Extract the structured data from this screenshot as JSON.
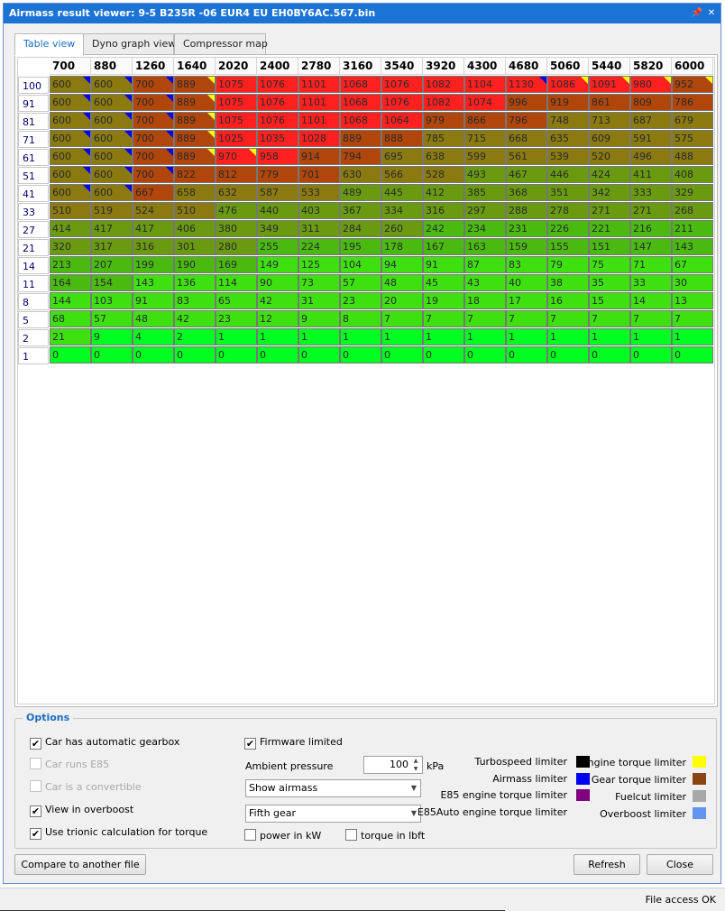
{
  "window": {
    "title": "Airmass result viewer: 9-5 B235R -06 EUR4 EU EH0BY6AC.567.bin",
    "pin_icon": "pin-icon",
    "close_icon": "close-icon"
  },
  "tabs": [
    {
      "label": "Table view",
      "active": true
    },
    {
      "label": "Dyno graph view",
      "active": false
    },
    {
      "label": "Compressor map",
      "active": false
    }
  ],
  "table": {
    "columns": [
      "700",
      "880",
      "1260",
      "1640",
      "2020",
      "2400",
      "2780",
      "3160",
      "3540",
      "3920",
      "4300",
      "4680",
      "5060",
      "5440",
      "5820",
      "6000"
    ],
    "colors": {
      "red": "#ff2020",
      "darkorange": "#b0460a",
      "olive": "#8a7a10",
      "olivegreen": "#6a9a10",
      "green": "#4aba10",
      "lightgreen": "#3fe010",
      "brightgreen": "#00ff20"
    },
    "rows": [
      {
        "label": "100",
        "values": [
          "600",
          "600",
          "700",
          "889",
          "1075",
          "1076",
          "1101",
          "1068",
          "1076",
          "1082",
          "1104",
          "1130",
          "1086",
          "1091",
          "980",
          "952"
        ],
        "colors": [
          "olive",
          "olive",
          "darkorange",
          "darkorange",
          "red",
          "red",
          "red",
          "red",
          "red",
          "red",
          "red",
          "red",
          "red",
          "red",
          "red",
          "darkorange"
        ],
        "flags": [
          "blue",
          "blue",
          "blue",
          "yellow",
          "",
          "",
          "",
          "",
          "",
          "",
          "",
          "blue",
          "yellow",
          "yellow",
          "yellow",
          "yellow"
        ]
      },
      {
        "label": "91",
        "values": [
          "600",
          "600",
          "700",
          "889",
          "1075",
          "1076",
          "1101",
          "1068",
          "1076",
          "1082",
          "1074",
          "996",
          "919",
          "861",
          "809",
          "786"
        ],
        "colors": [
          "olive",
          "olive",
          "darkorange",
          "darkorange",
          "red",
          "red",
          "red",
          "red",
          "red",
          "red",
          "red",
          "darkorange",
          "darkorange",
          "darkorange",
          "darkorange",
          "darkorange"
        ],
        "flags": [
          "blue",
          "blue",
          "blue",
          "yellow",
          "",
          "",
          "",
          "",
          "",
          "",
          "",
          "",
          "",
          "",
          "",
          ""
        ]
      },
      {
        "label": "81",
        "values": [
          "600",
          "600",
          "700",
          "889",
          "1075",
          "1076",
          "1101",
          "1068",
          "1064",
          "979",
          "866",
          "796",
          "748",
          "713",
          "687",
          "679"
        ],
        "colors": [
          "olive",
          "olive",
          "darkorange",
          "darkorange",
          "red",
          "red",
          "red",
          "red",
          "red",
          "darkorange",
          "darkorange",
          "darkorange",
          "olive",
          "olive",
          "olive",
          "olive"
        ],
        "flags": [
          "blue",
          "blue",
          "blue",
          "yellow",
          "",
          "",
          "",
          "",
          "",
          "",
          "",
          "",
          "",
          "",
          "",
          ""
        ]
      },
      {
        "label": "71",
        "values": [
          "600",
          "600",
          "700",
          "889",
          "1025",
          "1035",
          "1028",
          "889",
          "888",
          "785",
          "715",
          "668",
          "635",
          "609",
          "591",
          "575"
        ],
        "colors": [
          "olive",
          "olive",
          "darkorange",
          "darkorange",
          "red",
          "red",
          "red",
          "darkorange",
          "darkorange",
          "olive",
          "olive",
          "olive",
          "olive",
          "olive",
          "olive",
          "olive"
        ],
        "flags": [
          "blue",
          "blue",
          "blue",
          "yellow",
          "",
          "",
          "",
          "",
          "",
          "",
          "",
          "",
          "",
          "",
          "",
          ""
        ]
      },
      {
        "label": "61",
        "values": [
          "600",
          "600",
          "700",
          "889",
          "970",
          "958",
          "914",
          "794",
          "695",
          "638",
          "599",
          "561",
          "539",
          "520",
          "496",
          "488"
        ],
        "colors": [
          "olive",
          "olive",
          "darkorange",
          "darkorange",
          "red",
          "red",
          "darkorange",
          "darkorange",
          "olive",
          "olive",
          "olive",
          "olive",
          "olive",
          "olive",
          "olive",
          "olive"
        ],
        "flags": [
          "blue",
          "blue",
          "blue",
          "yellow",
          "yellow",
          "",
          "",
          "",
          "",
          "",
          "",
          "",
          "",
          "",
          "",
          ""
        ]
      },
      {
        "label": "51",
        "values": [
          "600",
          "600",
          "700",
          "822",
          "812",
          "779",
          "701",
          "630",
          "566",
          "528",
          "493",
          "467",
          "446",
          "424",
          "411",
          "408"
        ],
        "colors": [
          "olive",
          "olive",
          "darkorange",
          "darkorange",
          "darkorange",
          "darkorange",
          "darkorange",
          "olive",
          "olive",
          "olive",
          "olivegreen",
          "olivegreen",
          "olivegreen",
          "olivegreen",
          "olivegreen",
          "olivegreen"
        ],
        "flags": [
          "blue",
          "blue",
          "blue",
          "",
          "",
          "",
          "",
          "",
          "",
          "",
          "",
          "",
          "",
          "",
          "",
          ""
        ]
      },
      {
        "label": "41",
        "values": [
          "600",
          "600",
          "667",
          "658",
          "632",
          "587",
          "533",
          "489",
          "445",
          "412",
          "385",
          "368",
          "351",
          "342",
          "333",
          "329"
        ],
        "colors": [
          "olive",
          "olive",
          "darkorange",
          "olive",
          "olive",
          "olive",
          "olive",
          "olivegreen",
          "olivegreen",
          "olivegreen",
          "olivegreen",
          "olivegreen",
          "olivegreen",
          "olivegreen",
          "olivegreen",
          "olivegreen"
        ],
        "flags": [
          "blue",
          "blue",
          "",
          "",
          "",
          "",
          "",
          "",
          "",
          "",
          "",
          "",
          "",
          "",
          "",
          ""
        ]
      },
      {
        "label": "33",
        "values": [
          "510",
          "519",
          "524",
          "510",
          "476",
          "440",
          "403",
          "367",
          "334",
          "316",
          "297",
          "288",
          "278",
          "271",
          "271",
          "268"
        ],
        "colors": [
          "olive",
          "olive",
          "olive",
          "olive",
          "olivegreen",
          "olivegreen",
          "olivegreen",
          "olivegreen",
          "olivegreen",
          "olivegreen",
          "olivegreen",
          "olivegreen",
          "olivegreen",
          "olivegreen",
          "olivegreen",
          "olivegreen"
        ],
        "flags": [
          "",
          "",
          "",
          "",
          "",
          "",
          "",
          "",
          "",
          "",
          "",
          "",
          "",
          "",
          "",
          ""
        ]
      },
      {
        "label": "27",
        "values": [
          "414",
          "417",
          "417",
          "406",
          "380",
          "349",
          "311",
          "284",
          "260",
          "242",
          "234",
          "231",
          "226",
          "221",
          "216",
          "211"
        ],
        "colors": [
          "olivegreen",
          "olivegreen",
          "olivegreen",
          "olivegreen",
          "olivegreen",
          "olivegreen",
          "olivegreen",
          "olivegreen",
          "olivegreen",
          "green",
          "green",
          "green",
          "green",
          "green",
          "green",
          "green"
        ],
        "flags": [
          "",
          "",
          "",
          "",
          "",
          "",
          "",
          "",
          "",
          "",
          "",
          "",
          "",
          "",
          "",
          ""
        ]
      },
      {
        "label": "21",
        "values": [
          "320",
          "317",
          "316",
          "301",
          "280",
          "255",
          "224",
          "195",
          "178",
          "167",
          "163",
          "159",
          "155",
          "151",
          "147",
          "143"
        ],
        "colors": [
          "olivegreen",
          "olivegreen",
          "olivegreen",
          "olivegreen",
          "olivegreen",
          "green",
          "green",
          "green",
          "green",
          "green",
          "green",
          "green",
          "green",
          "green",
          "green",
          "green"
        ],
        "flags": [
          "",
          "",
          "",
          "",
          "",
          "",
          "",
          "",
          "",
          "",
          "",
          "",
          "",
          "",
          "",
          ""
        ]
      },
      {
        "label": "14",
        "values": [
          "213",
          "207",
          "199",
          "190",
          "169",
          "149",
          "125",
          "104",
          "94",
          "91",
          "87",
          "83",
          "79",
          "75",
          "71",
          "67"
        ],
        "colors": [
          "green",
          "green",
          "green",
          "green",
          "green",
          "lightgreen",
          "lightgreen",
          "lightgreen",
          "lightgreen",
          "lightgreen",
          "lightgreen",
          "lightgreen",
          "lightgreen",
          "lightgreen",
          "lightgreen",
          "lightgreen"
        ],
        "flags": [
          "",
          "",
          "",
          "",
          "",
          "",
          "",
          "",
          "",
          "",
          "",
          "",
          "",
          "",
          "",
          ""
        ]
      },
      {
        "label": "11",
        "values": [
          "164",
          "154",
          "143",
          "136",
          "114",
          "90",
          "73",
          "57",
          "48",
          "45",
          "43",
          "40",
          "38",
          "35",
          "33",
          "30"
        ],
        "colors": [
          "green",
          "green",
          "lightgreen",
          "lightgreen",
          "lightgreen",
          "lightgreen",
          "lightgreen",
          "lightgreen",
          "lightgreen",
          "lightgreen",
          "lightgreen",
          "lightgreen",
          "lightgreen",
          "lightgreen",
          "lightgreen",
          "lightgreen"
        ],
        "flags": [
          "",
          "",
          "",
          "",
          "",
          "",
          "",
          "",
          "",
          "",
          "",
          "",
          "",
          "",
          "",
          ""
        ]
      },
      {
        "label": "8",
        "values": [
          "144",
          "103",
          "91",
          "83",
          "65",
          "42",
          "31",
          "23",
          "20",
          "19",
          "18",
          "17",
          "16",
          "15",
          "14",
          "13"
        ],
        "colors": [
          "lightgreen",
          "lightgreen",
          "lightgreen",
          "lightgreen",
          "lightgreen",
          "lightgreen",
          "lightgreen",
          "lightgreen",
          "lightgreen",
          "lightgreen",
          "lightgreen",
          "lightgreen",
          "lightgreen",
          "lightgreen",
          "lightgreen",
          "lightgreen"
        ],
        "flags": [
          "",
          "",
          "",
          "",
          "",
          "",
          "",
          "",
          "",
          "",
          "",
          "",
          "",
          "",
          "",
          ""
        ]
      },
      {
        "label": "5",
        "values": [
          "68",
          "57",
          "48",
          "42",
          "23",
          "12",
          "9",
          "8",
          "7",
          "7",
          "7",
          "7",
          "7",
          "7",
          "7",
          "7"
        ],
        "colors": [
          "lightgreen",
          "lightgreen",
          "lightgreen",
          "lightgreen",
          "lightgreen",
          "lightgreen",
          "lightgreen",
          "lightgreen",
          "lightgreen",
          "lightgreen",
          "lightgreen",
          "lightgreen",
          "lightgreen",
          "lightgreen",
          "lightgreen",
          "lightgreen"
        ],
        "flags": [
          "",
          "",
          "",
          "",
          "",
          "",
          "",
          "",
          "",
          "",
          "",
          "",
          "",
          "",
          "",
          ""
        ]
      },
      {
        "label": "2",
        "values": [
          "21",
          "9",
          "4",
          "2",
          "1",
          "1",
          "1",
          "1",
          "1",
          "1",
          "1",
          "1",
          "1",
          "1",
          "1",
          "1"
        ],
        "colors": [
          "lightgreen",
          "brightgreen",
          "brightgreen",
          "brightgreen",
          "brightgreen",
          "brightgreen",
          "brightgreen",
          "brightgreen",
          "brightgreen",
          "brightgreen",
          "brightgreen",
          "brightgreen",
          "brightgreen",
          "brightgreen",
          "brightgreen",
          "brightgreen"
        ],
        "flags": [
          "",
          "",
          "",
          "",
          "",
          "",
          "",
          "",
          "",
          "",
          "",
          "",
          "",
          "",
          "",
          ""
        ]
      },
      {
        "label": "1",
        "values": [
          "0",
          "0",
          "0",
          "0",
          "0",
          "0",
          "0",
          "0",
          "0",
          "0",
          "0",
          "0",
          "0",
          "0",
          "0",
          "0"
        ],
        "colors": [
          "brightgreen",
          "brightgreen",
          "brightgreen",
          "brightgreen",
          "brightgreen",
          "brightgreen",
          "brightgreen",
          "brightgreen",
          "brightgreen",
          "brightgreen",
          "brightgreen",
          "brightgreen",
          "brightgreen",
          "brightgreen",
          "brightgreen",
          "brightgreen"
        ],
        "flags": [
          "",
          "",
          "",
          "",
          "",
          "",
          "",
          "",
          "",
          "",
          "",
          "",
          "",
          "",
          "",
          ""
        ]
      }
    ]
  },
  "options": {
    "title": "Options",
    "automatic_gearbox": {
      "label": "Car has automatic gearbox",
      "checked": true,
      "enabled": true
    },
    "runs_e85": {
      "label": "Car runs E85",
      "checked": false,
      "enabled": false
    },
    "convertible": {
      "label": "Car is a convertible",
      "checked": false,
      "enabled": false
    },
    "overboost": {
      "label": "View in overboost",
      "checked": true,
      "enabled": true
    },
    "trionic_calc": {
      "label": "Use trionic calculation for torque",
      "checked": true,
      "enabled": true
    },
    "firmware_limited": {
      "label": "Firmware limited",
      "checked": true,
      "enabled": true
    },
    "ambient_pressure_label": "Ambient pressure",
    "ambient_pressure_value": "100",
    "ambient_pressure_unit": "kPa",
    "show_select": "Show airmass",
    "gear_select": "Fifth gear",
    "power_kw": {
      "label": "power in kW",
      "checked": false
    },
    "torque_lbft": {
      "label": "torque in lbft",
      "checked": false
    }
  },
  "legend": [
    {
      "label": "Turbospeed limiter",
      "color": "#000000"
    },
    {
      "label": "Airmass limiter",
      "color": "#0000ee"
    },
    {
      "label": "E85 engine torque limiter",
      "color": "#800080"
    },
    {
      "label": "E85Auto engine torque limiter",
      "color": ""
    },
    {
      "label": "Engine torque limiter",
      "color": "#ffff00"
    },
    {
      "label": "Gear torque limiter",
      "color": "#8b4513"
    },
    {
      "label": "Fuelcut limiter",
      "color": "#a8a8a8"
    },
    {
      "label": "Overboost limiter",
      "color": "#6495ed"
    }
  ],
  "buttons": {
    "compare": "Compare to another file",
    "refresh": "Refresh",
    "close": "Close"
  },
  "status": {
    "text": "File access OK"
  }
}
